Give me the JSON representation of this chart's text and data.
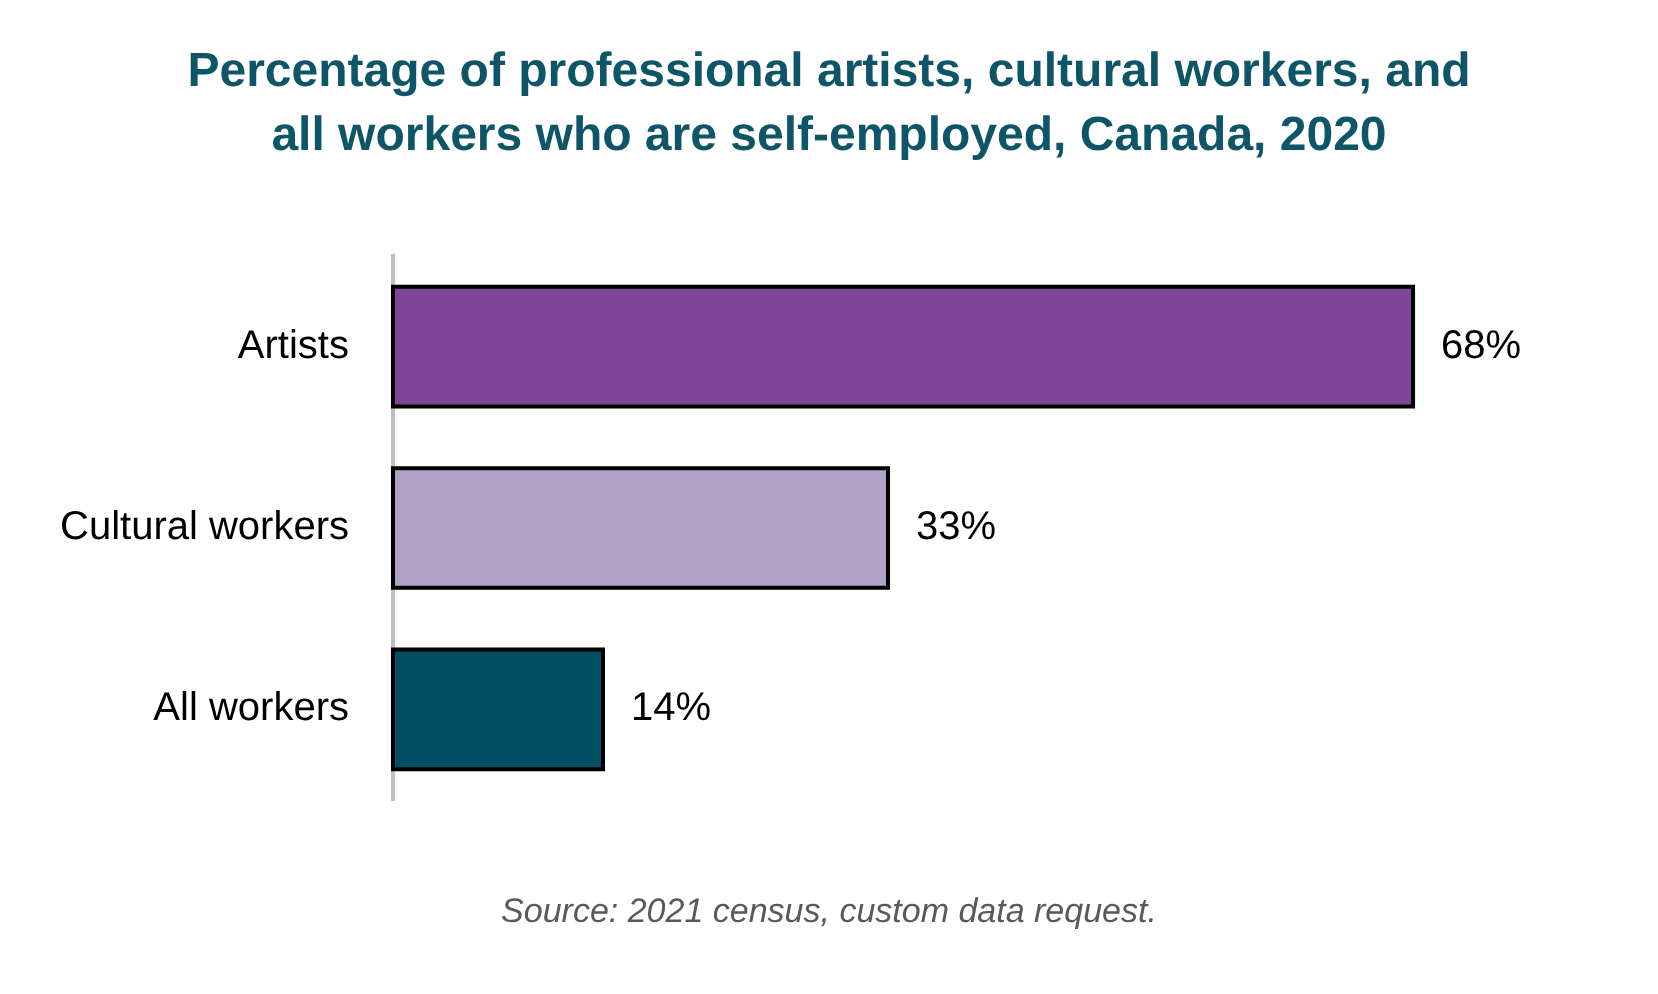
{
  "chart_data": {
    "type": "bar",
    "orientation": "horizontal",
    "title": "Percentage of professional artists, cultural workers, and all workers who are self-employed, Canada, 2020",
    "categories": [
      "Artists",
      "Cultural workers",
      "All workers"
    ],
    "values": [
      68,
      33,
      14
    ],
    "colors": [
      "#7f4598",
      "#b3a2c8",
      "#004f63"
    ],
    "value_labels": [
      "68%",
      "33%",
      "14%"
    ],
    "annotations": [
      "Source: 2021 census, custom data request."
    ],
    "legend": false
  }
}
